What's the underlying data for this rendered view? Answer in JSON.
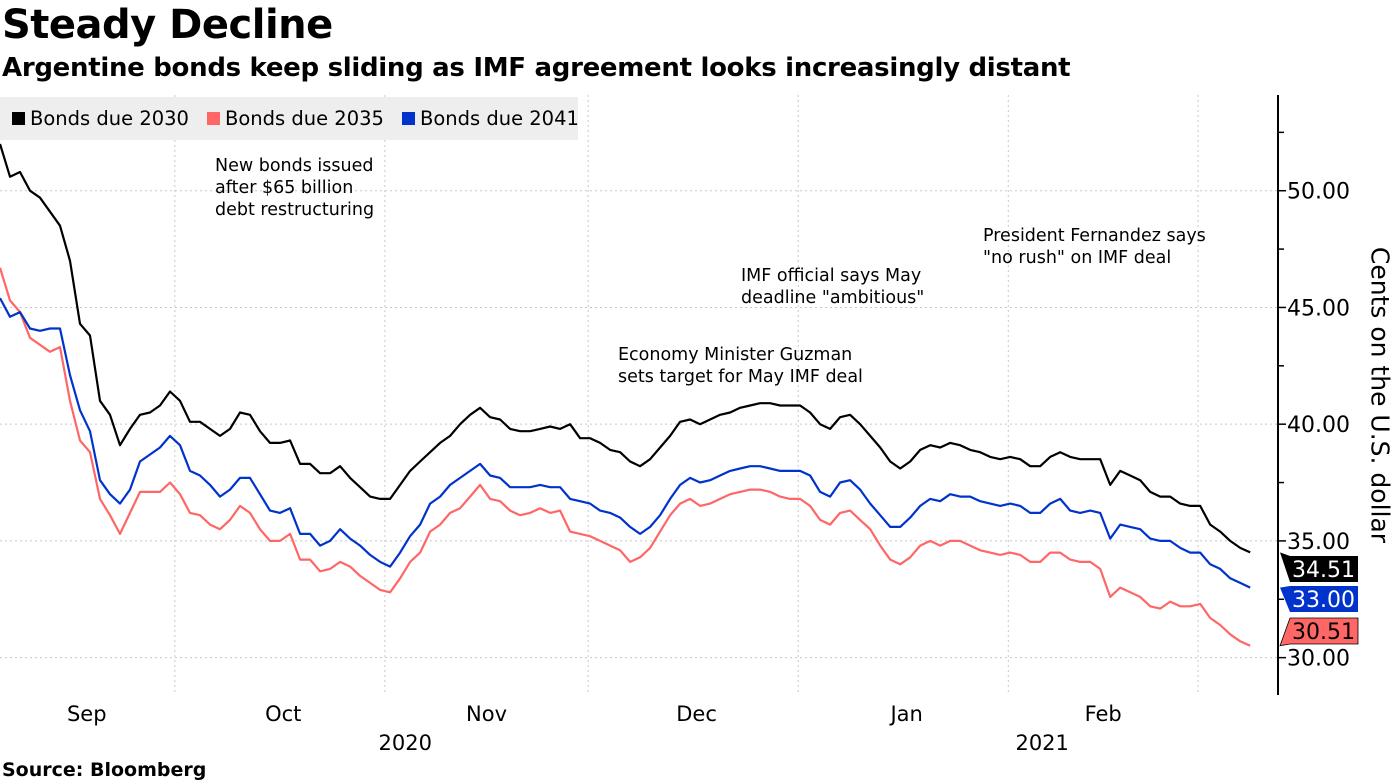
{
  "header": {
    "title": "Steady Decline",
    "subtitle": "Argentine bonds keep sliding as IMF agreement looks increasingly distant"
  },
  "footer": {
    "source": "Source: Bloomberg"
  },
  "chart_data": {
    "type": "line",
    "title": "Steady Decline",
    "subtitle": "Argentine bonds keep sliding as IMF agreement looks increasingly distant",
    "ylabel": "Cents on the U.S. dollar",
    "xlabel": "",
    "x_unit": "days since 2020-09-01",
    "x_start": 4.2,
    "x_step": 1.476,
    "xlim": [
      4.2,
      192.8
    ],
    "ylim": [
      28.4,
      54.1
    ],
    "y_axis_side": "right",
    "yticks": [
      30,
      35,
      40,
      45,
      50
    ],
    "ytick_labels": [
      "30.00",
      "35.00",
      "40.00",
      "45.00",
      "50.00"
    ],
    "y_minor_ticks": [
      32.5,
      37.5,
      42.5,
      47.5,
      52.5
    ],
    "month_gridlines_days": [
      30,
      61,
      91,
      122,
      153,
      181
    ],
    "xtick_labels": [
      {
        "label": "Sep",
        "day": 17
      },
      {
        "label": "Oct",
        "day": 46
      },
      {
        "label": "Nov",
        "day": 76
      },
      {
        "label": "Dec",
        "day": 107
      },
      {
        "label": "Jan",
        "day": 138
      },
      {
        "label": "Feb",
        "day": 167
      }
    ],
    "year_labels": [
      {
        "label": "2020",
        "day": 64
      },
      {
        "label": "2021",
        "day": 158
      }
    ],
    "grid": true,
    "legend_position": "top-left",
    "series": [
      {
        "name": "Bonds due 2030",
        "color": "#000000",
        "last_label": "34.51",
        "values": [
          52.0,
          50.6,
          50.8,
          50.0,
          49.7,
          49.1,
          48.5,
          47.0,
          44.3,
          43.8,
          41.0,
          40.4,
          39.1,
          39.8,
          40.4,
          40.5,
          40.8,
          41.4,
          41.0,
          40.1,
          40.1,
          39.8,
          39.5,
          39.8,
          40.5,
          40.4,
          39.7,
          39.2,
          39.2,
          39.3,
          38.3,
          38.3,
          37.9,
          37.9,
          38.2,
          37.7,
          37.3,
          36.9,
          36.8,
          36.8,
          37.4,
          38.0,
          38.4,
          38.8,
          39.2,
          39.5,
          40.0,
          40.4,
          40.7,
          40.3,
          40.2,
          39.8,
          39.7,
          39.7,
          39.8,
          39.9,
          39.8,
          40.0,
          39.4,
          39.4,
          39.2,
          38.9,
          38.8,
          38.4,
          38.2,
          38.5,
          39.0,
          39.5,
          40.1,
          40.2,
          40.0,
          40.2,
          40.4,
          40.5,
          40.7,
          40.8,
          40.9,
          40.9,
          40.8,
          40.8,
          40.8,
          40.5,
          40.0,
          39.8,
          40.3,
          40.4,
          40.0,
          39.5,
          39.0,
          38.4,
          38.1,
          38.4,
          38.9,
          39.1,
          39.0,
          39.2,
          39.1,
          38.9,
          38.8,
          38.6,
          38.5,
          38.6,
          38.5,
          38.2,
          38.2,
          38.6,
          38.8,
          38.6,
          38.5,
          38.5,
          38.5,
          37.4,
          38.0,
          37.8,
          37.6,
          37.1,
          36.9,
          36.9,
          36.6,
          36.5,
          36.5,
          35.7,
          35.4,
          35.0,
          34.7,
          34.51
        ]
      },
      {
        "name": "Bonds due 2035",
        "color": "#ff6666",
        "last_label": "30.51",
        "values": [
          46.7,
          45.3,
          44.8,
          43.7,
          43.4,
          43.1,
          43.3,
          41.0,
          39.3,
          38.8,
          36.8,
          36.1,
          35.3,
          36.2,
          37.1,
          37.1,
          37.1,
          37.5,
          37.0,
          36.2,
          36.1,
          35.7,
          35.5,
          35.9,
          36.5,
          36.2,
          35.5,
          35.0,
          35.0,
          35.3,
          34.2,
          34.2,
          33.7,
          33.8,
          34.1,
          33.9,
          33.5,
          33.2,
          32.9,
          32.8,
          33.4,
          34.1,
          34.5,
          35.4,
          35.7,
          36.2,
          36.4,
          36.9,
          37.4,
          36.8,
          36.7,
          36.3,
          36.1,
          36.2,
          36.4,
          36.2,
          36.3,
          35.4,
          35.3,
          35.2,
          35.0,
          34.8,
          34.6,
          34.1,
          34.3,
          34.7,
          35.4,
          36.1,
          36.6,
          36.8,
          36.5,
          36.6,
          36.8,
          37.0,
          37.1,
          37.2,
          37.2,
          37.1,
          36.9,
          36.8,
          36.8,
          36.5,
          35.9,
          35.7,
          36.2,
          36.3,
          35.9,
          35.5,
          34.8,
          34.2,
          34.0,
          34.3,
          34.8,
          35.0,
          34.8,
          35.0,
          35.0,
          34.8,
          34.6,
          34.5,
          34.4,
          34.5,
          34.4,
          34.1,
          34.1,
          34.5,
          34.5,
          34.2,
          34.1,
          34.1,
          33.8,
          32.6,
          33.0,
          32.8,
          32.6,
          32.2,
          32.1,
          32.4,
          32.2,
          32.2,
          32.3,
          31.7,
          31.4,
          31.0,
          30.7,
          30.51
        ]
      },
      {
        "name": "Bonds due 2041",
        "color": "#0033cc",
        "last_label": "33.00",
        "values": [
          45.4,
          44.6,
          44.8,
          44.1,
          44.0,
          44.1,
          44.1,
          42.1,
          40.6,
          39.7,
          37.6,
          37.0,
          36.6,
          37.2,
          38.4,
          38.7,
          39.0,
          39.5,
          39.1,
          38.0,
          37.8,
          37.4,
          36.9,
          37.2,
          37.7,
          37.7,
          37.0,
          36.3,
          36.2,
          36.4,
          35.3,
          35.3,
          34.8,
          35.0,
          35.5,
          35.1,
          34.8,
          34.4,
          34.1,
          33.9,
          34.5,
          35.2,
          35.7,
          36.6,
          36.9,
          37.4,
          37.7,
          38.0,
          38.3,
          37.8,
          37.7,
          37.3,
          37.3,
          37.3,
          37.4,
          37.3,
          37.3,
          36.8,
          36.7,
          36.6,
          36.3,
          36.2,
          36.0,
          35.6,
          35.3,
          35.6,
          36.1,
          36.8,
          37.4,
          37.7,
          37.5,
          37.6,
          37.8,
          38.0,
          38.1,
          38.2,
          38.2,
          38.1,
          38.0,
          38.0,
          38.0,
          37.8,
          37.1,
          36.9,
          37.5,
          37.6,
          37.2,
          36.6,
          36.1,
          35.6,
          35.6,
          36.0,
          36.5,
          36.8,
          36.7,
          37.0,
          36.9,
          36.9,
          36.7,
          36.6,
          36.5,
          36.6,
          36.5,
          36.2,
          36.2,
          36.6,
          36.8,
          36.3,
          36.2,
          36.3,
          36.2,
          35.1,
          35.7,
          35.6,
          35.5,
          35.1,
          35.0,
          35.0,
          34.7,
          34.5,
          34.5,
          34.0,
          33.8,
          33.4,
          33.2,
          33.0
        ]
      }
    ],
    "annotations": [
      {
        "text": "New bonds issued\nafter $65 billion\ndebt restructuring"
      },
      {
        "text": "Economy Minister Guzman\nsets target for May IMF deal"
      },
      {
        "text": "IMF official says May\ndeadline \"ambitious\""
      },
      {
        "text": "President Fernandez says\n\"no rush\" on IMF deal"
      }
    ]
  }
}
